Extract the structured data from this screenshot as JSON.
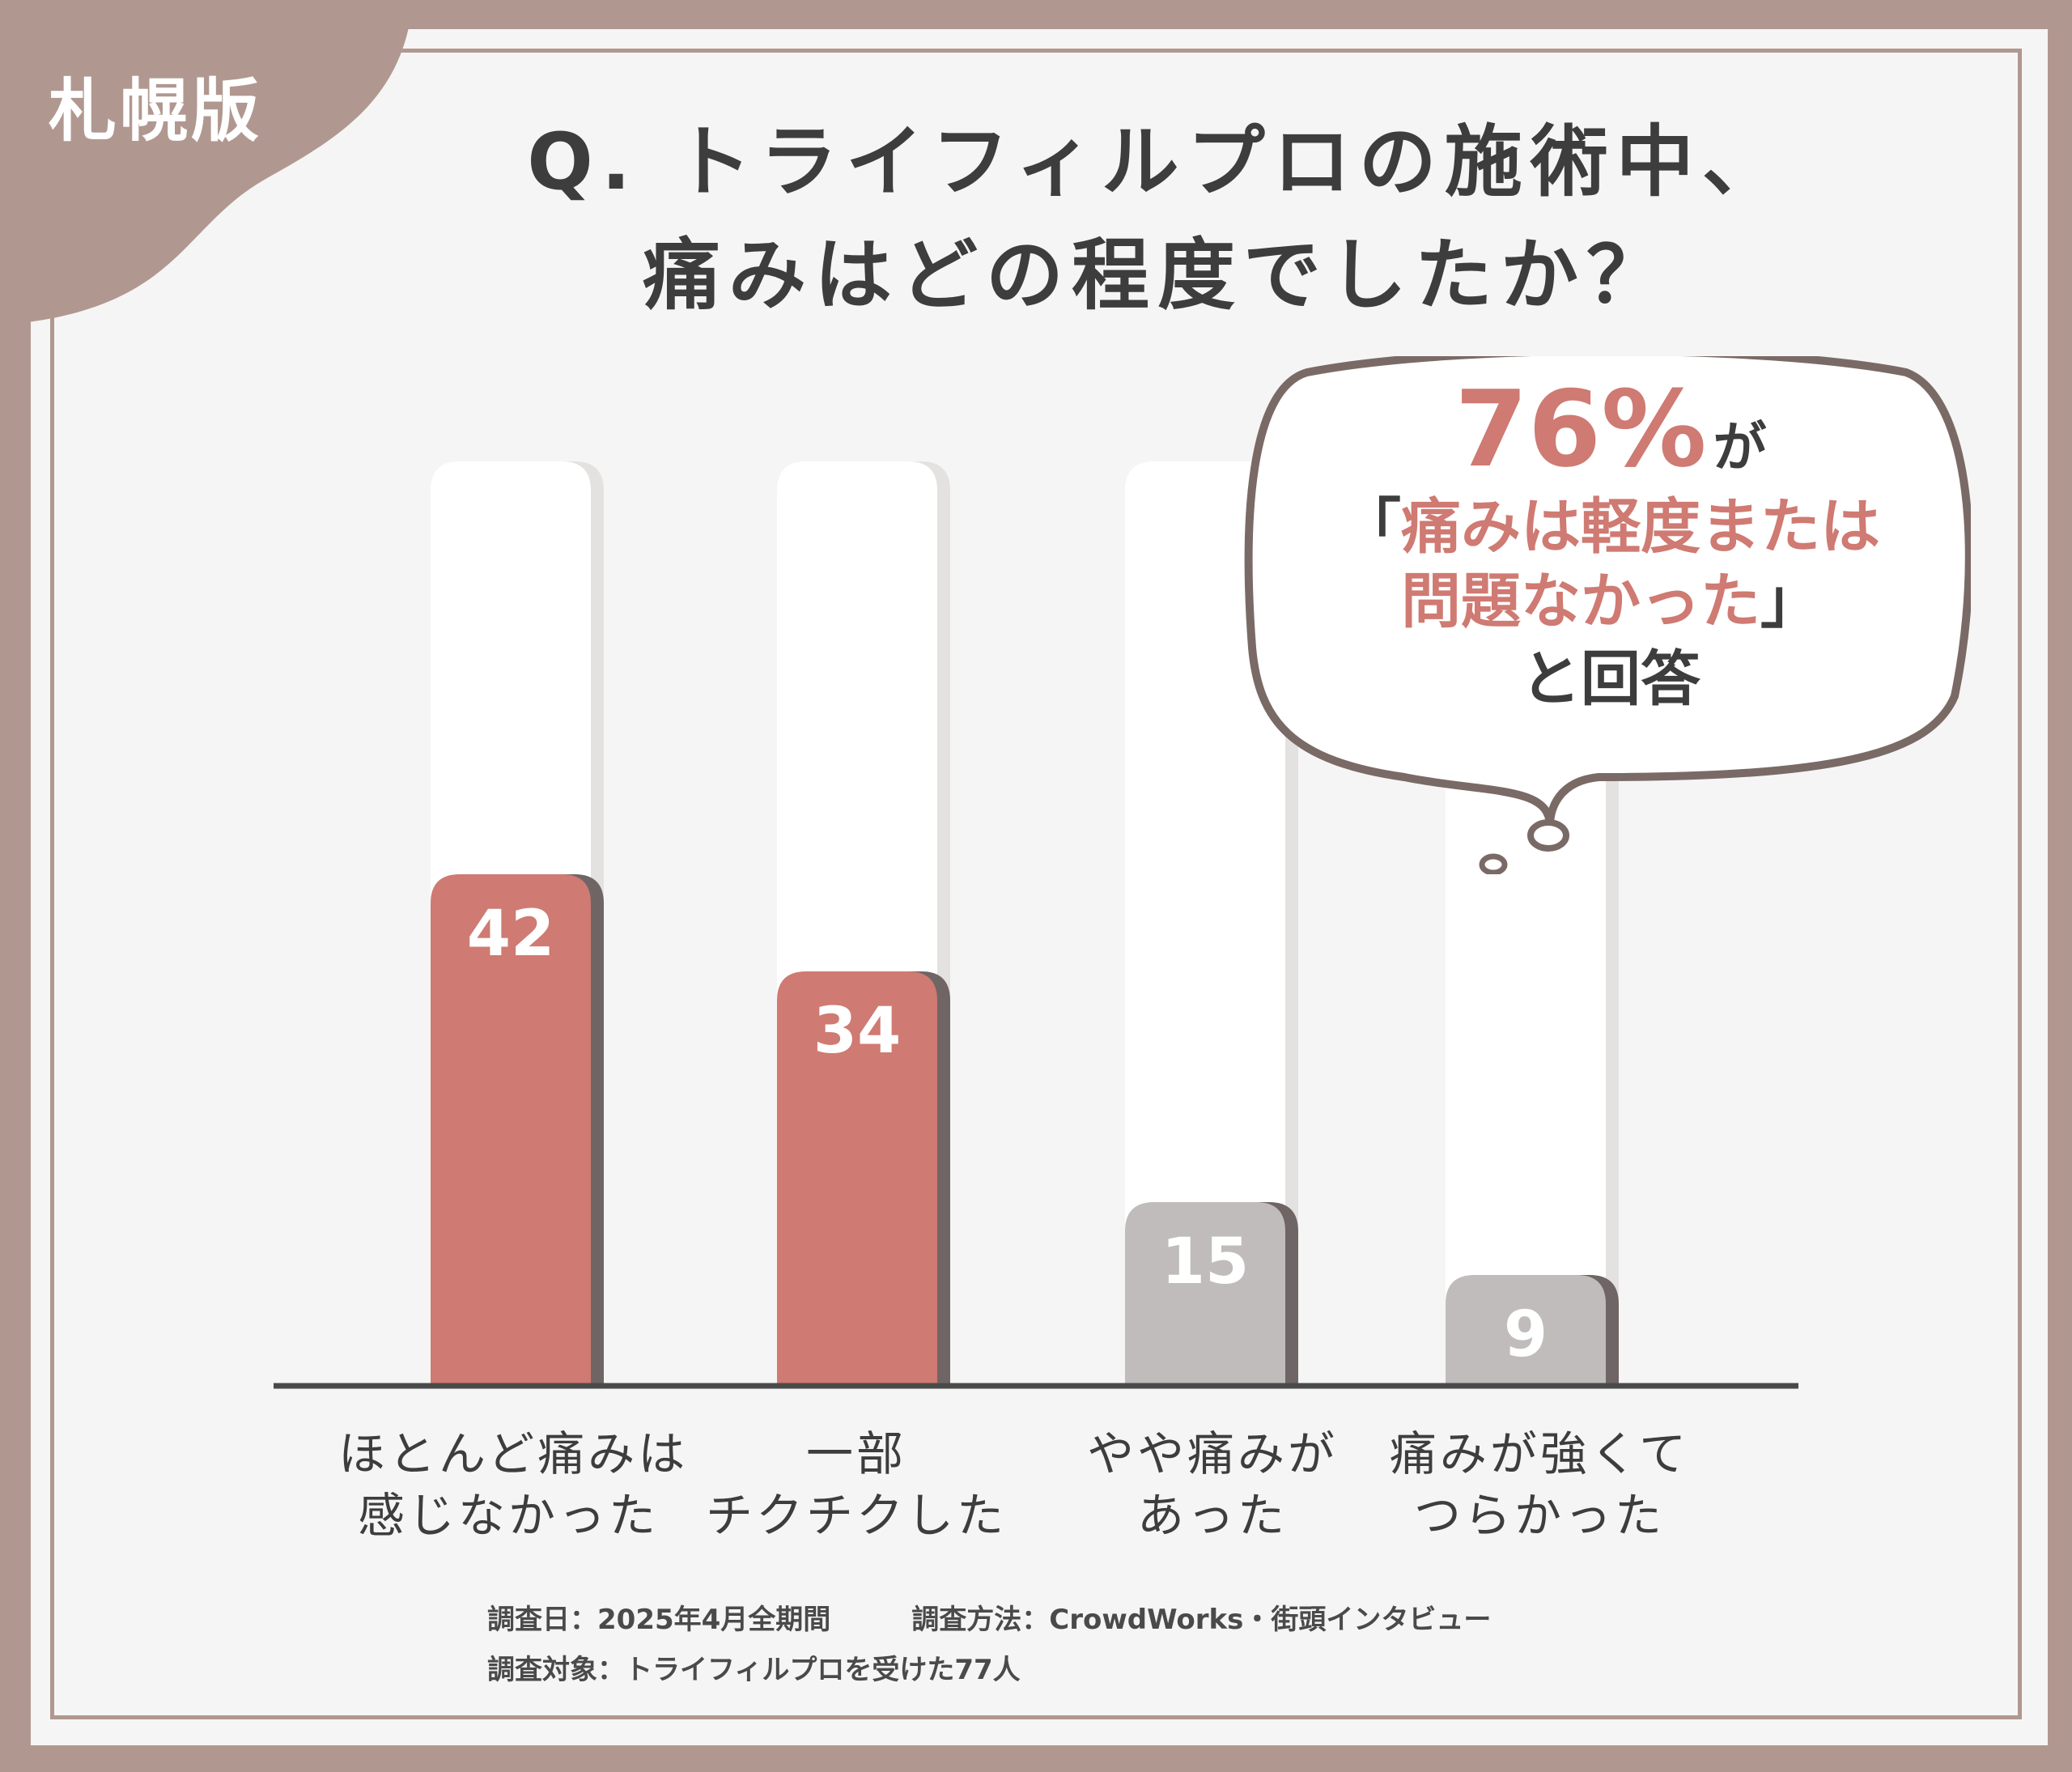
{
  "corner_label": "札幌版",
  "title_line1": "Q. トライフィルプロの施術中、",
  "title_line2": "痛みはどの程度でしたか？",
  "callout": {
    "percent": "76%",
    "particle": "が",
    "line1_open": "「",
    "line1": "痛みは軽度または",
    "line2": "問題なかった",
    "line2_close": "」",
    "line3": "と回答"
  },
  "chart_data": {
    "type": "bar",
    "categories": [
      [
        "ほとんど痛みは",
        "感じなかった"
      ],
      [
        "一部",
        "チクチクした"
      ],
      [
        "やや痛みが",
        "あった"
      ],
      [
        "痛みが強くて",
        "つらかった"
      ]
    ],
    "values": [
      42,
      34,
      15,
      9
    ],
    "value_labels": [
      "42",
      "34",
      "15",
      "9"
    ],
    "ylim": [
      0,
      76
    ],
    "colors": [
      "#cf7a72",
      "#cf7a72",
      "#c0bcbb",
      "#c0bcbb"
    ],
    "shadow_color": "#6f6565",
    "track_color": "#ffffff",
    "axis_color": "#4a4a4a"
  },
  "notes": {
    "date": "調査日：2025年4月全期間",
    "method": "調査方法：CrowdWorks・街頭インタビュー",
    "target": "調査対象：トライフィルプロを受けた77人"
  }
}
